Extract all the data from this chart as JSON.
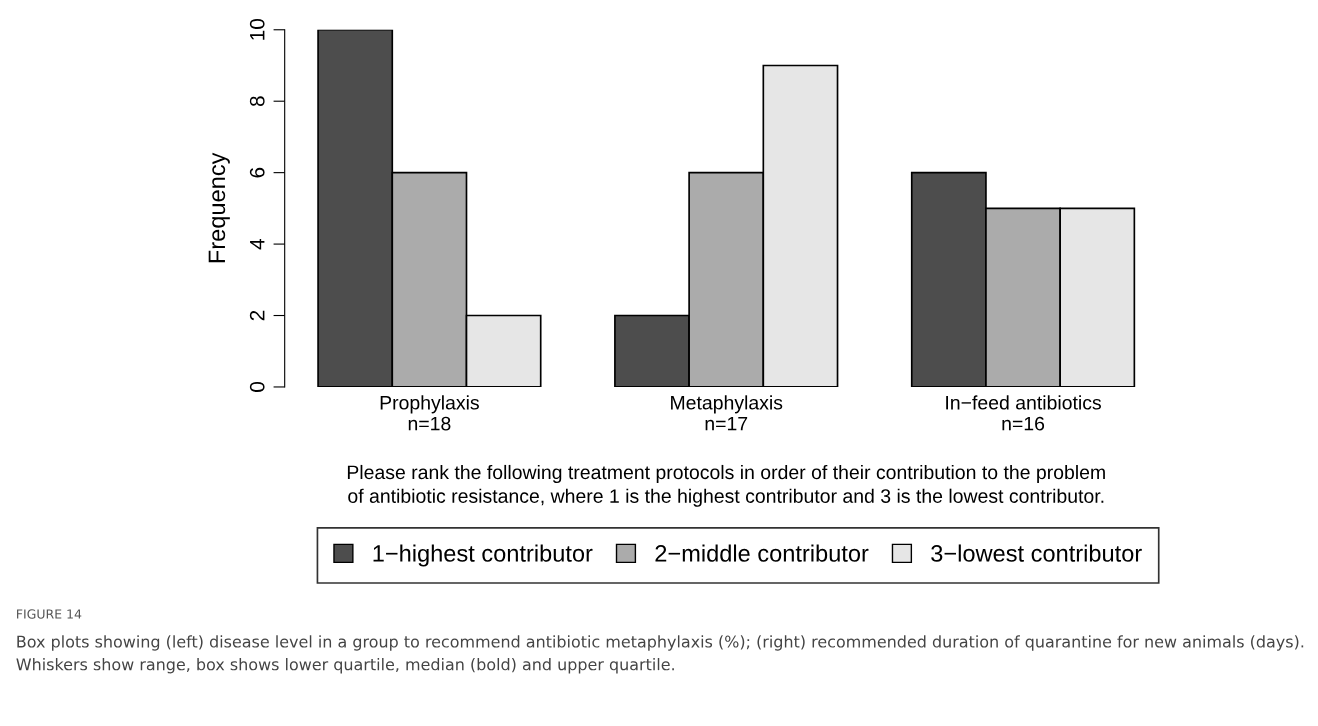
{
  "chart_data": {
    "type": "bar",
    "categories": [
      "Prophylaxis\nn=18",
      "Metaphylaxis\nn=17",
      "In−feed antibiotics\nn=16"
    ],
    "series": [
      {
        "name": "1−highest contributor",
        "color": "#4d4d4d",
        "values": [
          10,
          2,
          6
        ]
      },
      {
        "name": "2−middle contributor",
        "color": "#ababab",
        "values": [
          6,
          6,
          5
        ]
      },
      {
        "name": "3−lowest contributor",
        "color": "#e6e6e6",
        "values": [
          2,
          9,
          5
        ]
      }
    ],
    "ylabel": "Frequency",
    "xlabel": "Please rank the following treatment protocols in order of their contribution to the problem\nof antibiotic resistance, where 1 is the highest contributor and 3 is the lowest contributor.",
    "ylim": [
      0,
      10
    ],
    "yticks": [
      0,
      2,
      4,
      6,
      8,
      10
    ],
    "grid": false,
    "legend": "bottom",
    "annotations": [
      "FIGURE 14",
      "Box plots showing (left) disease level in a group to recommend antibiotic metaphylaxis (%); (right) recommended duration of quarantine for new animals (days). Whiskers show range, box shows lower quartile, median (bold) and upper quartile."
    ]
  }
}
